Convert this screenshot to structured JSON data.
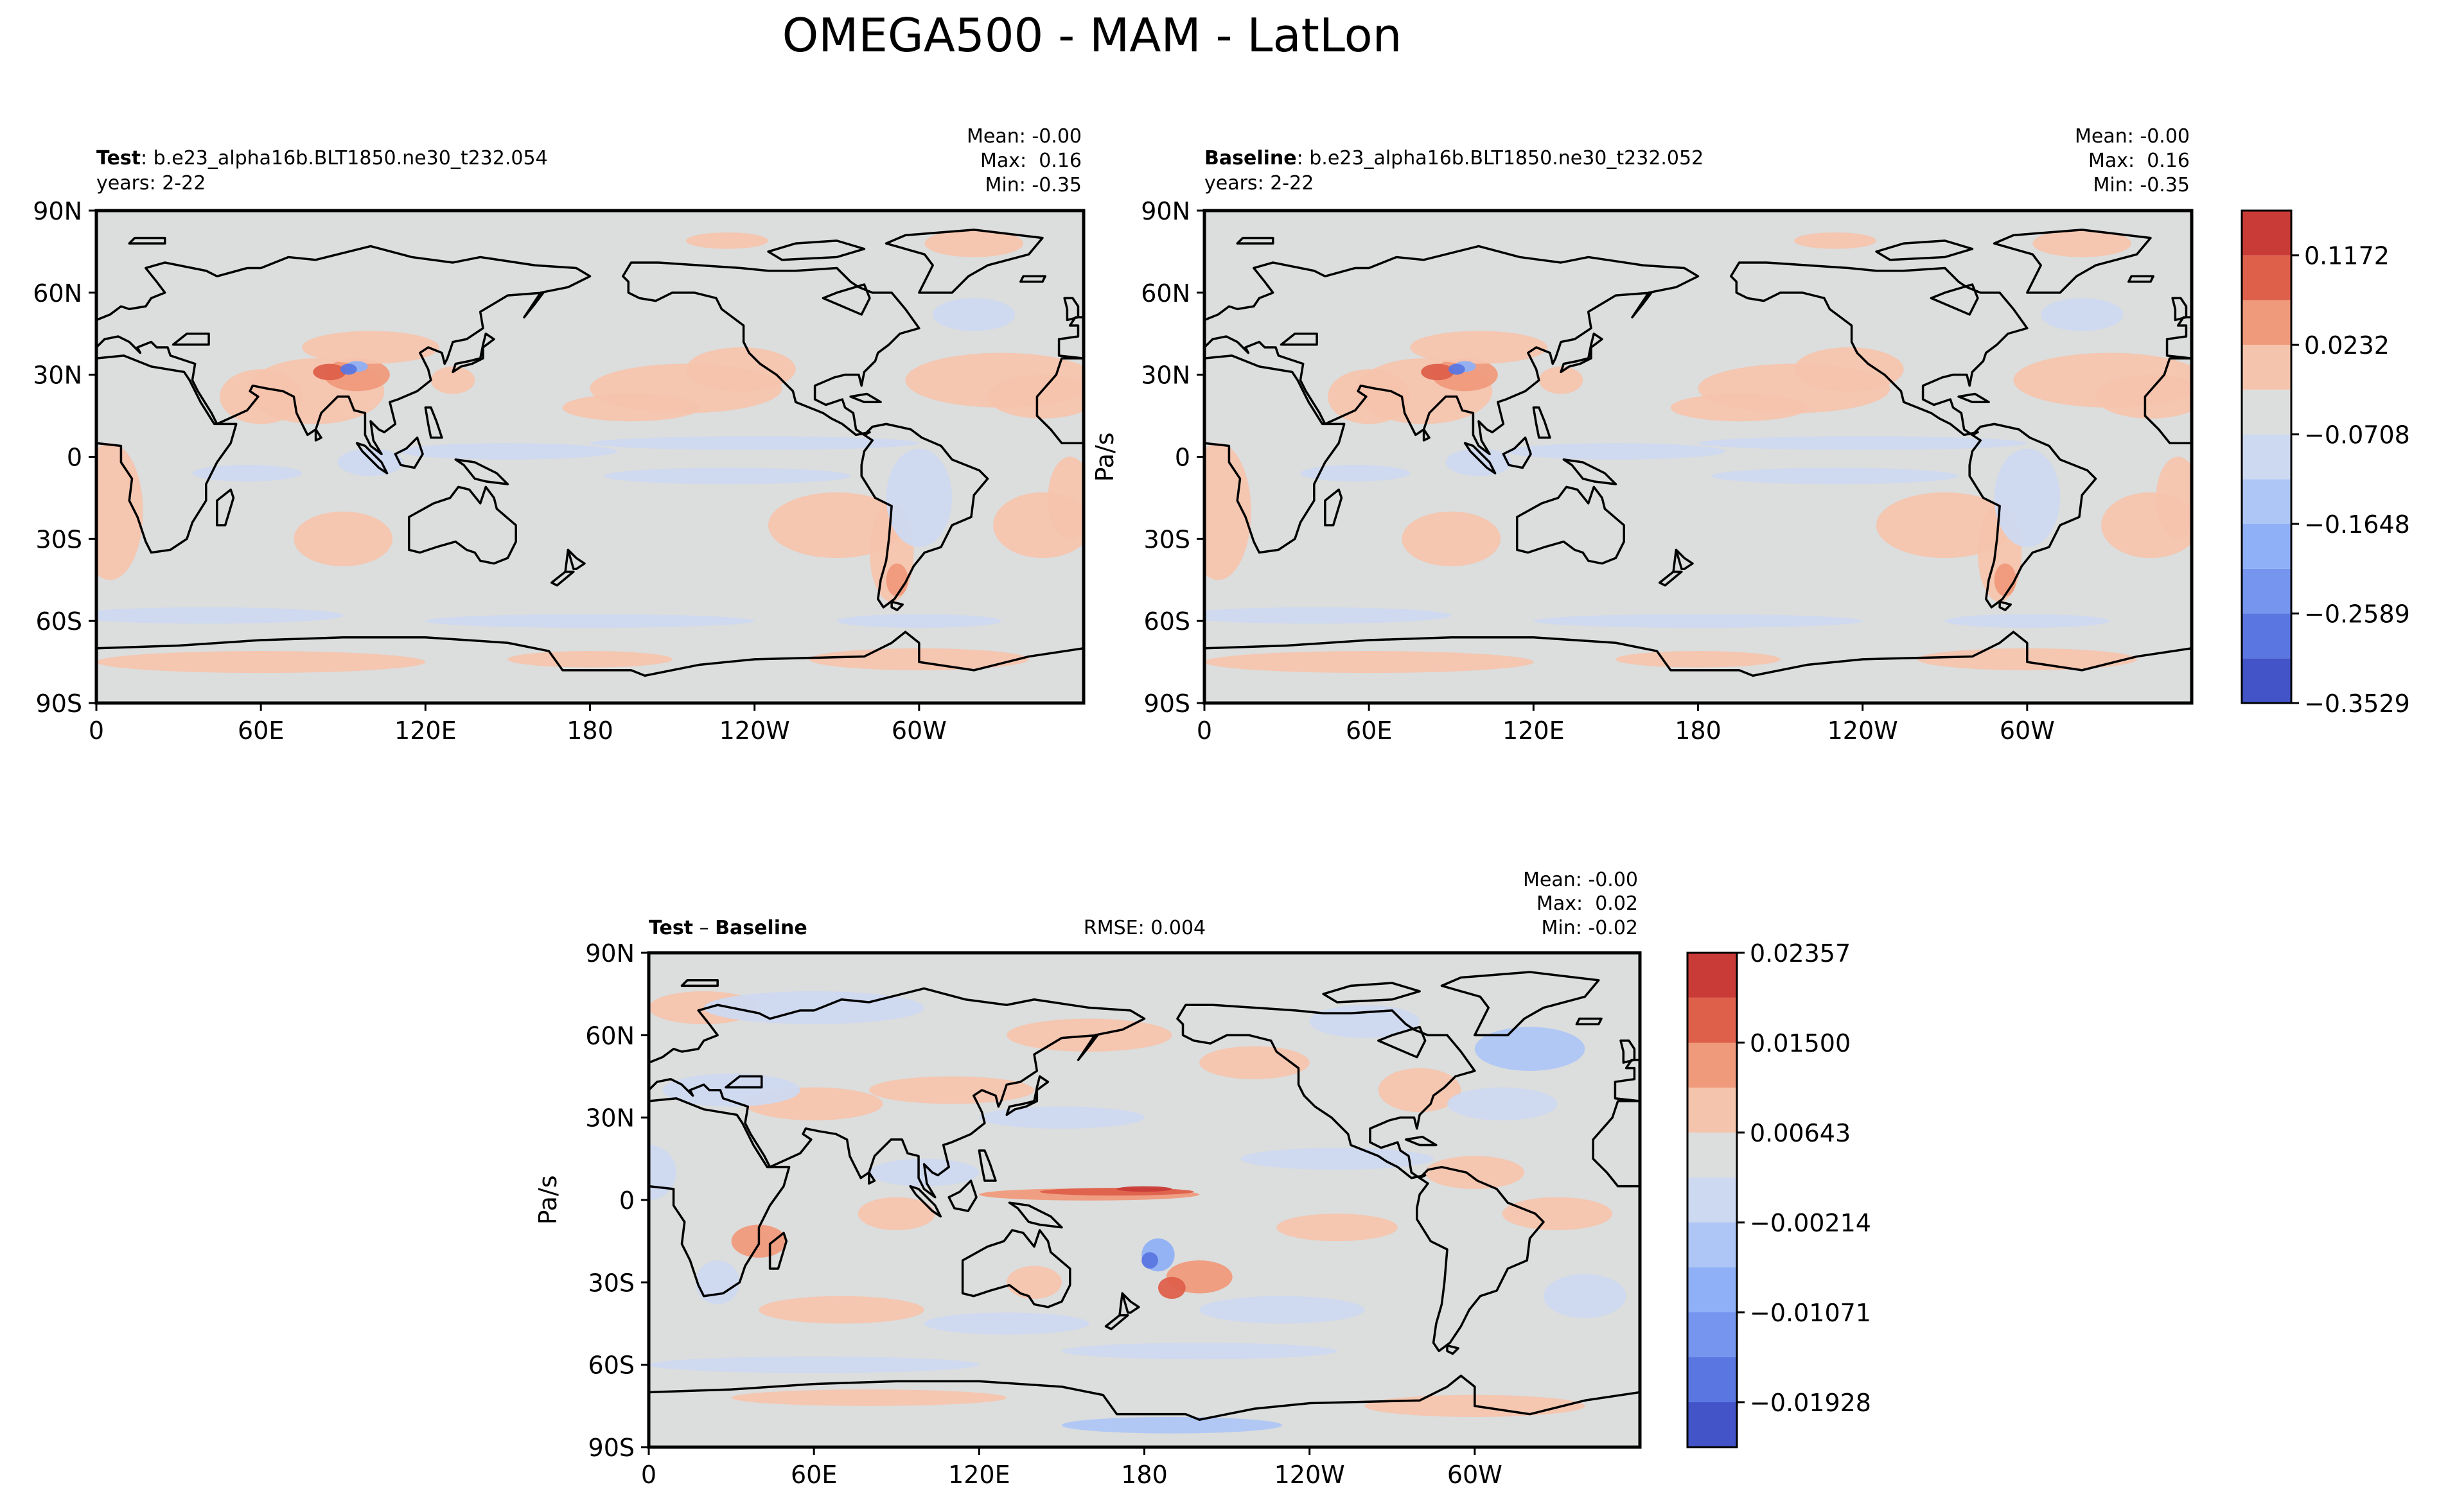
{
  "title": "OMEGA500 - MAM - LatLon",
  "colors": {
    "land_outline": "#000000",
    "background": "#dcdddd",
    "warm_1": "#f5c4ad",
    "warm_2": "#f09a7c",
    "warm_3": "#de604b",
    "warm_4": "#c93b37",
    "cool_1": "#cdd9f0",
    "cool_2": "#aec6f6",
    "cool_3": "#8fb0f6",
    "cool_4": "#7595ef",
    "cool_5": "#5a76e0",
    "cool_6": "#4254c8"
  },
  "panels": {
    "test": {
      "label_bold": "Test",
      "label_rest": ": b.e23_alpha16b.BLT1850.ne30_t232.054",
      "years": "years: 2-22",
      "mean": "Mean: -0.00",
      "max": "Max:  0.16",
      "min": "Min: -0.35"
    },
    "baseline": {
      "label_bold": "Baseline",
      "label_rest": ": b.e23_alpha16b.BLT1850.ne30_t232.052",
      "years": "years: 2-22",
      "mean": "Mean: -0.00",
      "max": "Max:  0.16",
      "min": "Min: -0.35",
      "ylabel": "Pa/s"
    },
    "diff": {
      "label_bold_a": "Test",
      "label_sep": " – ",
      "label_bold_b": "Baseline",
      "rmse": "RMSE: 0.004",
      "mean": "Mean: -0.00",
      "max": "Max:  0.02",
      "min": "Min: -0.02",
      "ylabel": "Pa/s"
    }
  },
  "axes": {
    "lat_ticks": [
      "90N",
      "60N",
      "30N",
      "0",
      "30S",
      "60S",
      "90S"
    ],
    "lon_ticks": [
      "0",
      "60E",
      "120E",
      "180",
      "120W",
      "60W"
    ]
  },
  "colorbars": {
    "top": {
      "labels": [
        "0.1172",
        "0.0232",
        "−0.0708",
        "−0.1648",
        "−0.2589",
        "−0.3529"
      ],
      "levels": [
        -0.3529,
        -0.3059,
        -0.2589,
        -0.2119,
        -0.1648,
        -0.1178,
        -0.0708,
        -0.0238,
        0.0232,
        0.0702,
        0.1172,
        0.1642
      ]
    },
    "diff": {
      "labels": [
        "0.02357",
        "0.01500",
        "0.00643",
        "−0.00214",
        "−0.01071",
        "−0.01928"
      ],
      "levels": [
        -0.02357,
        -0.01928,
        -0.015,
        -0.01071,
        -0.00643,
        -0.00214,
        0.00214,
        0.00643,
        0.01071,
        0.015,
        0.01929,
        0.02357
      ]
    }
  },
  "chart_data": [
    {
      "type": "heatmap",
      "title": "Test",
      "xlabel": "",
      "ylabel": "",
      "x_ticks": [
        "0",
        "60E",
        "120E",
        "180",
        "120W",
        "60W"
      ],
      "y_ticks": [
        "90N",
        "60N",
        "30N",
        "0",
        "30S",
        "60S",
        "90S"
      ],
      "stats": {
        "mean": -0.0,
        "max": 0.16,
        "min": -0.35
      }
    },
    {
      "type": "heatmap",
      "title": "Baseline",
      "ylabel": "Pa/s",
      "x_ticks": [
        "0",
        "60E",
        "120E",
        "180",
        "120W",
        "60W"
      ],
      "y_ticks": [
        "90N",
        "60N",
        "30N",
        "0",
        "30S",
        "60S",
        "90S"
      ],
      "stats": {
        "mean": -0.0,
        "max": 0.16,
        "min": -0.35
      }
    },
    {
      "type": "heatmap",
      "title": "Test – Baseline",
      "ylabel": "Pa/s",
      "x_ticks": [
        "0",
        "60E",
        "120E",
        "180",
        "120W",
        "60W"
      ],
      "y_ticks": [
        "90N",
        "60N",
        "30N",
        "0",
        "30S",
        "60S",
        "90S"
      ],
      "stats": {
        "mean": -0.0,
        "max": 0.02,
        "min": -0.02,
        "rmse": 0.004
      }
    }
  ]
}
